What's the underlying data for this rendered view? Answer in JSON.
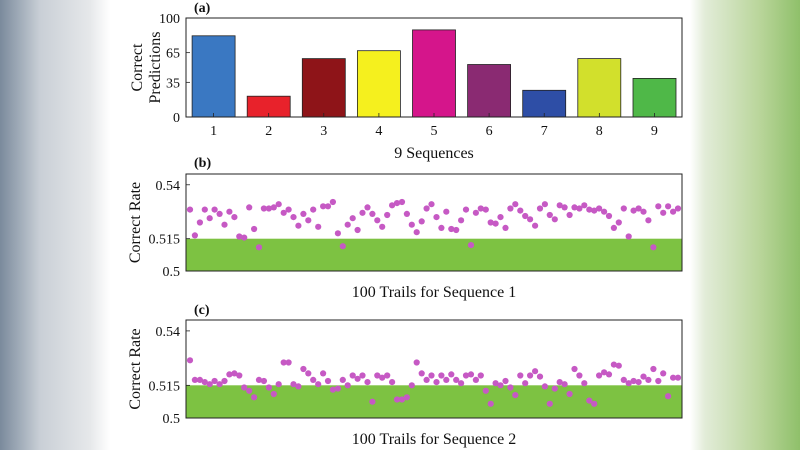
{
  "chart_data": [
    {
      "panel": "(a)",
      "type": "bar",
      "ylabel": "Correct Predictions",
      "xlabel": "9 Sequences",
      "ylim": [
        0,
        100
      ],
      "yticks": [
        0,
        35,
        65,
        100
      ],
      "categories": [
        "1",
        "2",
        "3",
        "4",
        "5",
        "6",
        "7",
        "8",
        "9"
      ],
      "values": [
        82,
        21,
        59,
        67,
        88,
        53,
        27,
        59,
        39
      ],
      "colors": [
        "#3a78c2",
        "#e8222b",
        "#8e1418",
        "#f5f01e",
        "#d5158b",
        "#8a2a72",
        "#2e4ea6",
        "#d2e02c",
        "#4fb848"
      ]
    },
    {
      "panel": "(b)",
      "type": "scatter",
      "ylabel": "Correct Rate",
      "xlabel": "100 Trails for Sequence 1",
      "ylim": [
        0.5,
        0.545
      ],
      "yticks": [
        0.5,
        0.515,
        0.54
      ],
      "yticklabels": [
        "0.5",
        "0.515",
        "0.54"
      ],
      "threshold": 0.515,
      "marker_color": "#c659c4",
      "band_color": "#7dc242",
      "values": [
        0.5285,
        0.5165,
        0.5225,
        0.5285,
        0.5245,
        0.5285,
        0.5265,
        0.5215,
        0.5275,
        0.525,
        0.516,
        0.5155,
        0.5295,
        0.5195,
        0.511,
        0.529,
        0.529,
        0.5295,
        0.531,
        0.527,
        0.5285,
        0.525,
        0.521,
        0.5265,
        0.5235,
        0.5285,
        0.5205,
        0.53,
        0.53,
        0.532,
        0.5175,
        0.5115,
        0.5215,
        0.5245,
        0.519,
        0.527,
        0.5295,
        0.5265,
        0.5235,
        0.5205,
        0.526,
        0.5305,
        0.5315,
        0.532,
        0.5265,
        0.5215,
        0.518,
        0.523,
        0.529,
        0.531,
        0.525,
        0.52,
        0.5275,
        0.5195,
        0.519,
        0.5235,
        0.5285,
        0.512,
        0.527,
        0.529,
        0.5285,
        0.5225,
        0.522,
        0.525,
        0.52,
        0.529,
        0.531,
        0.528,
        0.5255,
        0.524,
        0.521,
        0.529,
        0.531,
        0.526,
        0.524,
        0.5305,
        0.5295,
        0.526,
        0.5295,
        0.529,
        0.5305,
        0.5285,
        0.528,
        0.529,
        0.5275,
        0.5255,
        0.52,
        0.5225,
        0.529,
        0.516,
        0.528,
        0.529,
        0.5275,
        0.5235,
        0.511,
        0.53,
        0.527,
        0.53,
        0.5275,
        0.529
      ]
    },
    {
      "panel": "(c)",
      "type": "scatter",
      "ylabel": "Correct Rate",
      "xlabel": "100 Trails for Sequence 2",
      "ylim": [
        0.5,
        0.545
      ],
      "yticks": [
        0.5,
        0.515,
        0.54
      ],
      "yticklabels": [
        "0.5",
        "0.515",
        "0.54"
      ],
      "threshold": 0.515,
      "marker_color": "#c659c4",
      "band_color": "#7dc242",
      "values": [
        0.5265,
        0.5175,
        0.5175,
        0.5165,
        0.5155,
        0.517,
        0.5155,
        0.517,
        0.52,
        0.5205,
        0.5195,
        0.514,
        0.5125,
        0.5095,
        0.5175,
        0.517,
        0.514,
        0.511,
        0.5155,
        0.5255,
        0.5255,
        0.5155,
        0.5145,
        0.5225,
        0.5205,
        0.5175,
        0.5155,
        0.5205,
        0.517,
        0.513,
        0.5135,
        0.5175,
        0.515,
        0.5195,
        0.518,
        0.5195,
        0.5165,
        0.5075,
        0.5195,
        0.5185,
        0.5195,
        0.5165,
        0.5085,
        0.5085,
        0.5095,
        0.515,
        0.5255,
        0.5205,
        0.5175,
        0.5195,
        0.5165,
        0.5195,
        0.5175,
        0.52,
        0.5175,
        0.516,
        0.5195,
        0.52,
        0.5175,
        0.5195,
        0.5125,
        0.5065,
        0.516,
        0.515,
        0.517,
        0.514,
        0.5105,
        0.5195,
        0.516,
        0.5195,
        0.5215,
        0.519,
        0.5145,
        0.5065,
        0.5135,
        0.5165,
        0.5155,
        0.511,
        0.5225,
        0.5195,
        0.516,
        0.508,
        0.5065,
        0.5195,
        0.521,
        0.52,
        0.5245,
        0.524,
        0.5175,
        0.516,
        0.517,
        0.5165,
        0.519,
        0.5175,
        0.5225,
        0.517,
        0.5205,
        0.51,
        0.5185,
        0.5185
      ]
    }
  ]
}
